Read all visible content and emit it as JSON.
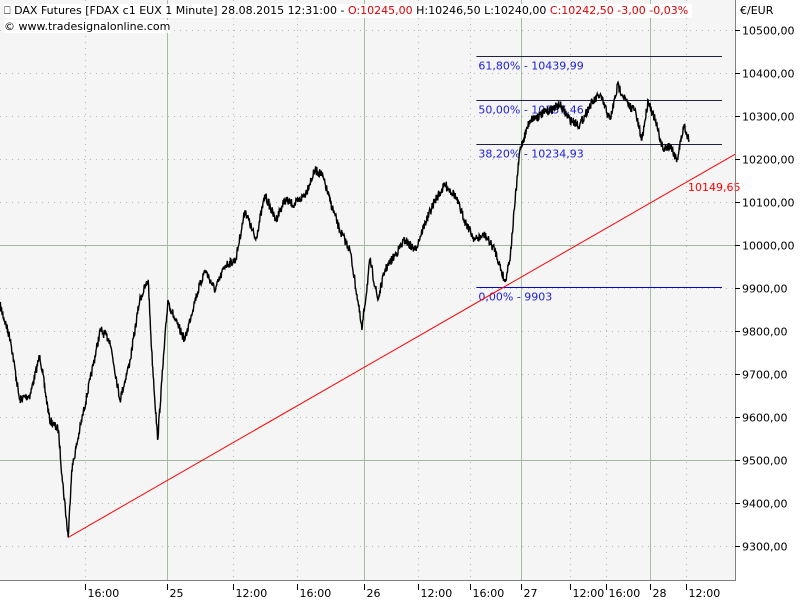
{
  "header": {
    "symbol_icon": "candlestick-icon",
    "title": "DAX Futures [FDAX c1 EUX  1 Minute] 28.08.2015 12:31:00 - ",
    "open": "O:10245,00",
    "high": "H:10246,50",
    "low": "L:10240,00",
    "close": "C:10242,50",
    "change": "-3,00",
    "change_pct": "-0,03%",
    "copyright": "© www.tradesignalonline.com",
    "unit": "€/EUR"
  },
  "colors": {
    "price": "#000000",
    "trendline": "#ff0000",
    "fibonacci": "#0000e0",
    "background": "#f5f5f5",
    "grid": "#a0c0a0"
  },
  "chart_data": {
    "type": "line",
    "title": "DAX Futures [FDAX c1 EUX  1 Minute]",
    "ylim": [
      9300,
      10500
    ],
    "y_ticks": [
      9300,
      9400,
      9500,
      9600,
      9700,
      9800,
      9900,
      10000,
      10100,
      10200,
      10300,
      10400,
      10500
    ],
    "y_tick_labels": [
      "9300,00",
      "9400,00",
      "9500,00",
      "9600,00",
      "9700,00",
      "9800,00",
      "9900,00",
      "10000,00",
      "10100,00",
      "10200,00",
      "10300,00",
      "10400,00",
      "10500,00"
    ],
    "x_ticks": [
      {
        "label": "16:00",
        "time": "24 16:00",
        "day_start": false
      },
      {
        "label": "25",
        "time": "25 00:00",
        "day_start": true
      },
      {
        "label": "12:00",
        "time": "25 12:00",
        "day_start": false
      },
      {
        "label": "16:00",
        "time": "25 16:00",
        "day_start": false
      },
      {
        "label": "26",
        "time": "26 00:00",
        "day_start": true
      },
      {
        "label": "12:00",
        "time": "26 12:00",
        "day_start": false
      },
      {
        "label": "16:00",
        "time": "26 16:00",
        "day_start": false
      },
      {
        "label": "27",
        "time": "27 00:00",
        "day_start": true
      },
      {
        "label": "12:00",
        "time": "27 12:00",
        "day_start": false
      },
      {
        "label": "16:00",
        "time": "27 16:00",
        "day_start": false
      },
      {
        "label": "28",
        "time": "28 00:00",
        "day_start": true
      },
      {
        "label": "12:00",
        "time": "28 12:00",
        "day_start": false
      }
    ],
    "grid": true,
    "series": [
      {
        "points": [
          [
            "24 08:00",
            9860
          ],
          [
            "24 09:00",
            9779
          ],
          [
            "24 09:50",
            9640
          ],
          [
            "24 10:50",
            9651
          ],
          [
            "24 11:45",
            9744
          ],
          [
            "24 12:40",
            9593
          ],
          [
            "24 13:30",
            9570
          ],
          [
            "24 13:50",
            9465
          ],
          [
            "24 14:25",
            9320
          ],
          [
            "24 14:45",
            9477
          ],
          [
            "24 15:30",
            9570
          ],
          [
            "24 16:30",
            9686
          ],
          [
            "24 17:30",
            9802
          ],
          [
            "24 18:25",
            9779
          ],
          [
            "24 19:25",
            9640
          ],
          [
            "24 20:25",
            9733
          ],
          [
            "24 21:20",
            9872
          ],
          [
            "24 22:10",
            9919
          ],
          [
            "24 22:30",
            9756
          ],
          [
            "24 23:05",
            9547
          ],
          [
            "24 23:30",
            9686
          ],
          [
            "25 00:10",
            9872
          ],
          [
            "25 01:25",
            9826
          ],
          [
            "25 03:15",
            9779
          ],
          [
            "25 05:05",
            9872
          ],
          [
            "25 06:55",
            9942
          ],
          [
            "25 08:45",
            9895
          ],
          [
            "25 10:35",
            9953
          ],
          [
            "25 12:10",
            9965
          ],
          [
            "25 12:45",
            10081
          ],
          [
            "25 13:25",
            10012
          ],
          [
            "25 14:00",
            10116
          ],
          [
            "25 14:40",
            10058
          ],
          [
            "25 15:15",
            10105
          ],
          [
            "25 15:50",
            10093
          ],
          [
            "25 16:55",
            10116
          ],
          [
            "25 18:10",
            10174
          ],
          [
            "25 19:00",
            10163
          ],
          [
            "25 19:55",
            10105
          ],
          [
            "25 21:05",
            10035
          ],
          [
            "25 22:20",
            9988
          ],
          [
            "25 23:15",
            9872
          ],
          [
            "25 23:45",
            9802
          ],
          [
            "26 01:20",
            9965
          ],
          [
            "26 03:05",
            9872
          ],
          [
            "26 04:40",
            9942
          ],
          [
            "26 06:55",
            9977
          ],
          [
            "26 09:05",
            10012
          ],
          [
            "26 11:20",
            9988
          ],
          [
            "26 12:30",
            10047
          ],
          [
            "26 13:20",
            10105
          ],
          [
            "26 14:05",
            10140
          ],
          [
            "26 14:50",
            10116
          ],
          [
            "26 15:35",
            10058
          ],
          [
            "26 16:45",
            10012
          ],
          [
            "26 18:20",
            10023
          ],
          [
            "26 19:55",
            9988
          ],
          [
            "26 21:30",
            9914
          ],
          [
            "26 22:20",
            9977
          ],
          [
            "26 23:05",
            10105
          ],
          [
            "26 23:50",
            10221
          ],
          [
            "27 02:10",
            10291
          ],
          [
            "27 04:40",
            10302
          ],
          [
            "27 07:05",
            10314
          ],
          [
            "27 09:30",
            10326
          ],
          [
            "27 12:00",
            10291
          ],
          [
            "27 13:05",
            10279
          ],
          [
            "27 14:15",
            10326
          ],
          [
            "27 15:20",
            10349
          ],
          [
            "27 16:45",
            10291
          ],
          [
            "27 18:10",
            10372
          ],
          [
            "27 20:00",
            10326
          ],
          [
            "27 21:15",
            10314
          ],
          [
            "27 22:30",
            10244
          ],
          [
            "27 23:40",
            10337
          ],
          [
            "28 01:40",
            10291
          ],
          [
            "28 04:20",
            10221
          ],
          [
            "28 06:40",
            10233
          ],
          [
            "28 09:00",
            10198
          ],
          [
            "28 11:20",
            10279
          ],
          [
            "28 12:31",
            10244
          ]
        ]
      }
    ],
    "fibonacci": [
      {
        "label": "61,80% - 10439,99",
        "value": 10439.99
      },
      {
        "label": "50,00% - 10337,46",
        "value": 10337.46
      },
      {
        "label": "38,20% - 10234,93",
        "value": 10234.93
      },
      {
        "label": "0,00% - 9903",
        "value": 9903
      }
    ],
    "fib_start_time": "26 17:00",
    "trendline": {
      "start": [
        "24 14:25",
        9320
      ],
      "end_value_label": "10149,65",
      "end_value": 10149.65,
      "end_time": "28 12:31"
    }
  }
}
